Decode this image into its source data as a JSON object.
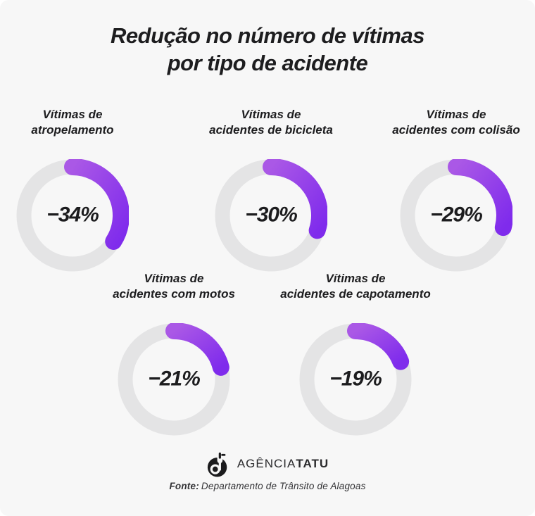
{
  "title": {
    "line1": "Redução no número de vítimas",
    "line2": "por tipo de acidente"
  },
  "chart_data": {
    "type": "pie",
    "variant": "donut-gauge-multiples",
    "title": "Redução no número de vítimas por tipo de acidente",
    "unit": "%",
    "legend": "none",
    "grid": false,
    "items": [
      {
        "label_line1": "Vítimas de",
        "label_line2": "atropelamento",
        "value": -34,
        "display": "−34%",
        "fill_percent": 34
      },
      {
        "label_line1": "Vítimas de",
        "label_line2": "acidentes de bicicleta",
        "value": -30,
        "display": "−30%",
        "fill_percent": 30
      },
      {
        "label_line1": "Vítimas de",
        "label_line2": "acidentes com colisão",
        "value": -29,
        "display": "−29%",
        "fill_percent": 29
      },
      {
        "label_line1": "Vítimas de",
        "label_line2": "acidentes com motos",
        "value": -21,
        "display": "−21%",
        "fill_percent": 21
      },
      {
        "label_line1": "Vítimas de",
        "label_line2": "acidentes de capotamento",
        "value": -19,
        "display": "−19%",
        "fill_percent": 19
      }
    ],
    "colors": {
      "track": "#e4e4e5",
      "arc_start": "#aa58e6",
      "arc_end": "#7f2bec"
    }
  },
  "footer": {
    "logo_icon": "agencia-tatu-logo",
    "logo_text_regular": "AGÊNCIA",
    "logo_text_bold": "TATU",
    "source_label": "Fonte:",
    "source_text": "Departamento de Trânsito de Alagoas"
  },
  "colors": {
    "background": "#f7f7f7",
    "text": "#1d1d1f"
  }
}
